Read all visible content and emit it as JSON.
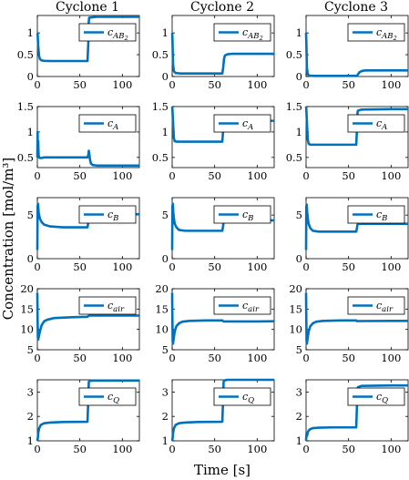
{
  "figure": {
    "xlabel": "Time [s]",
    "ylabel": "Concentration [mol/m³]",
    "columns": [
      "Cyclone 1",
      "Cyclone 2",
      "Cyclone 3"
    ]
  },
  "chart_data": [
    {
      "type": "line",
      "row": 0,
      "col": 0,
      "legend": "c_{AB_2}",
      "series_name": "c_AB2",
      "xlim": [
        0,
        120
      ],
      "ylim": [
        0,
        1.4
      ],
      "xticks": [
        0,
        50,
        100
      ],
      "yticks": [
        0,
        0.5,
        1
      ],
      "x": [
        0,
        0.3,
        1,
        2,
        3,
        5,
        8,
        15,
        30,
        59,
        60,
        60.3,
        61,
        70,
        100,
        120
      ],
      "y": [
        1.0,
        0.98,
        0.7,
        0.48,
        0.4,
        0.37,
        0.36,
        0.355,
        0.355,
        0.355,
        0.8,
        1.22,
        1.35,
        1.37,
        1.37,
        1.37
      ]
    },
    {
      "type": "line",
      "row": 0,
      "col": 1,
      "legend": "c_{AB_2}",
      "series_name": "c_AB2",
      "xlim": [
        0,
        120
      ],
      "ylim": [
        0,
        1.4
      ],
      "xticks": [
        0,
        50,
        100
      ],
      "yticks": [
        0,
        0.5,
        1
      ],
      "x": [
        0,
        0.3,
        1,
        2,
        4,
        10,
        30,
        59,
        60,
        61,
        62,
        65,
        70,
        100,
        120
      ],
      "y": [
        1.0,
        0.9,
        0.3,
        0.12,
        0.08,
        0.07,
        0.07,
        0.07,
        0.2,
        0.4,
        0.48,
        0.51,
        0.52,
        0.52,
        0.52
      ]
    },
    {
      "type": "line",
      "row": 0,
      "col": 2,
      "legend": "c_{AB_2}",
      "series_name": "c_AB2",
      "xlim": [
        0,
        120
      ],
      "ylim": [
        0,
        1.4
      ],
      "xticks": [
        0,
        50,
        100
      ],
      "yticks": [
        0,
        0.5,
        1
      ],
      "x": [
        0,
        0.3,
        1,
        2,
        4,
        10,
        30,
        60,
        61,
        63,
        66,
        70,
        100,
        120
      ],
      "y": [
        1.0,
        0.8,
        0.2,
        0.05,
        0.02,
        0.015,
        0.015,
        0.015,
        0.05,
        0.1,
        0.13,
        0.14,
        0.14,
        0.14
      ]
    },
    {
      "type": "line",
      "row": 1,
      "col": 0,
      "legend": "c_A",
      "series_name": "c_A",
      "xlim": [
        0,
        120
      ],
      "ylim": [
        0.3,
        1.5
      ],
      "xticks": [
        0,
        50,
        100
      ],
      "yticks": [
        0.5,
        1,
        1.5
      ],
      "x": [
        0,
        0.3,
        0.6,
        1,
        1.5,
        2,
        3,
        5,
        8,
        15,
        30,
        59,
        60,
        60.5,
        61,
        62,
        63,
        65,
        70,
        100,
        120
      ],
      "y": [
        0.5,
        1.0,
        0.6,
        0.82,
        0.55,
        0.5,
        0.49,
        0.49,
        0.5,
        0.5,
        0.5,
        0.5,
        0.55,
        0.63,
        0.58,
        0.45,
        0.38,
        0.35,
        0.34,
        0.34,
        0.34
      ]
    },
    {
      "type": "line",
      "row": 1,
      "col": 1,
      "legend": "c_A",
      "series_name": "c_A",
      "xlim": [
        0,
        120
      ],
      "ylim": [
        0.3,
        1.5
      ],
      "xticks": [
        0,
        50,
        100
      ],
      "yticks": [
        0.5,
        1,
        1.5
      ],
      "x": [
        0,
        0.3,
        1,
        2,
        3,
        5,
        10,
        30,
        59,
        60,
        60.5,
        61,
        65,
        100,
        120
      ],
      "y": [
        1.5,
        1.45,
        1.2,
        0.88,
        0.82,
        0.81,
        0.81,
        0.81,
        0.81,
        1.05,
        1.2,
        1.22,
        1.22,
        1.22,
        1.22
      ]
    },
    {
      "type": "line",
      "row": 1,
      "col": 2,
      "legend": "c_A",
      "series_name": "c_A",
      "xlim": [
        0,
        120
      ],
      "ylim": [
        0.3,
        1.5
      ],
      "xticks": [
        0,
        50,
        100
      ],
      "yticks": [
        0.5,
        1,
        1.5
      ],
      "x": [
        0,
        0.3,
        1,
        2,
        3,
        5,
        10,
        30,
        59,
        60,
        60.5,
        61,
        65,
        100,
        120
      ],
      "y": [
        1.5,
        1.45,
        1.2,
        0.85,
        0.77,
        0.75,
        0.75,
        0.75,
        0.75,
        1.1,
        1.38,
        1.42,
        1.44,
        1.45,
        1.45
      ]
    },
    {
      "type": "line",
      "row": 2,
      "col": 0,
      "legend": "c_B",
      "series_name": "c_B",
      "xlim": [
        0,
        120
      ],
      "ylim": [
        0,
        7
      ],
      "xticks": [
        0,
        50,
        100
      ],
      "yticks": [
        0,
        5
      ],
      "x": [
        0,
        0.3,
        0.8,
        1.5,
        3,
        5,
        8,
        15,
        30,
        59,
        60,
        60.5,
        61,
        65,
        100,
        120
      ],
      "y": [
        1.0,
        6.0,
        6.3,
        5.3,
        4.6,
        4.2,
        3.9,
        3.7,
        3.6,
        3.6,
        4.2,
        4.9,
        5.05,
        5.1,
        5.1,
        5.1
      ]
    },
    {
      "type": "line",
      "row": 2,
      "col": 1,
      "legend": "c_B",
      "series_name": "c_B",
      "xlim": [
        0,
        120
      ],
      "ylim": [
        0,
        7
      ],
      "xticks": [
        0,
        50,
        100
      ],
      "yticks": [
        0,
        5
      ],
      "x": [
        0,
        0.3,
        0.8,
        1.5,
        3,
        5,
        8,
        15,
        30,
        59,
        60,
        60.5,
        61,
        65,
        100,
        120
      ],
      "y": [
        1.0,
        6.0,
        6.3,
        5.0,
        4.0,
        3.6,
        3.3,
        3.2,
        3.2,
        3.2,
        3.8,
        4.3,
        4.4,
        4.4,
        4.4,
        4.4
      ]
    },
    {
      "type": "line",
      "row": 2,
      "col": 2,
      "legend": "c_B",
      "series_name": "c_B",
      "xlim": [
        0,
        120
      ],
      "ylim": [
        0,
        7
      ],
      "xticks": [
        0,
        50,
        100
      ],
      "yticks": [
        0,
        5
      ],
      "x": [
        0,
        0.3,
        0.8,
        1.5,
        3,
        5,
        8,
        15,
        30,
        59,
        60,
        60.5,
        61,
        65,
        100,
        120
      ],
      "y": [
        1.0,
        6.0,
        6.2,
        5.0,
        4.0,
        3.5,
        3.2,
        3.1,
        3.1,
        3.1,
        3.6,
        3.9,
        4.0,
        4.0,
        4.0,
        4.0
      ]
    },
    {
      "type": "line",
      "row": 3,
      "col": 0,
      "legend": "c_{air}",
      "series_name": "c_air",
      "xlim": [
        0,
        120
      ],
      "ylim": [
        5,
        20
      ],
      "xticks": [
        0,
        50,
        100
      ],
      "yticks": [
        5,
        10,
        15,
        20
      ],
      "x": [
        0,
        0.2,
        0.6,
        1,
        2,
        3,
        5,
        8,
        12,
        20,
        40,
        59,
        60,
        61,
        100,
        120
      ],
      "y": [
        19,
        14,
        8,
        7.5,
        8.5,
        9.5,
        11,
        12,
        12.4,
        12.8,
        13.0,
        13.1,
        13.3,
        13.4,
        13.4,
        13.4
      ]
    },
    {
      "type": "line",
      "row": 3,
      "col": 1,
      "legend": "c_{air}",
      "series_name": "c_air",
      "xlim": [
        0,
        120
      ],
      "ylim": [
        5,
        20
      ],
      "xticks": [
        0,
        50,
        100
      ],
      "yticks": [
        5,
        10,
        15,
        20
      ],
      "x": [
        0,
        0.2,
        0.6,
        1,
        2,
        3,
        5,
        8,
        12,
        20,
        40,
        59,
        60,
        61,
        100,
        120
      ],
      "y": [
        19,
        14,
        7,
        6.5,
        8,
        9.5,
        10.8,
        11.5,
        11.9,
        12.1,
        12.2,
        12.2,
        12.0,
        11.95,
        11.95,
        12.0
      ]
    },
    {
      "type": "line",
      "row": 3,
      "col": 2,
      "legend": "c_{air}",
      "series_name": "c_air",
      "xlim": [
        0,
        120
      ],
      "ylim": [
        5,
        20
      ],
      "xticks": [
        0,
        50,
        100
      ],
      "yticks": [
        5,
        10,
        15,
        20
      ],
      "x": [
        0,
        0.2,
        0.6,
        1,
        2,
        3,
        5,
        8,
        12,
        20,
        40,
        59,
        60,
        61,
        100,
        120
      ],
      "y": [
        19,
        14,
        7,
        6.5,
        8,
        9.5,
        10.8,
        11.5,
        11.9,
        12.1,
        12.2,
        12.2,
        12.0,
        12.05,
        12.1,
        12.1
      ]
    },
    {
      "type": "line",
      "row": 4,
      "col": 0,
      "legend": "c_Q",
      "series_name": "c_Q",
      "xlim": [
        0,
        120
      ],
      "ylim": [
        1,
        3.5
      ],
      "xticks": [
        0,
        50,
        100
      ],
      "yticks": [
        1,
        2,
        3
      ],
      "x": [
        0,
        0.5,
        1,
        2,
        4,
        8,
        15,
        30,
        59,
        60,
        60.5,
        61,
        65,
        100,
        120
      ],
      "y": [
        1.0,
        1.1,
        1.3,
        1.5,
        1.65,
        1.72,
        1.75,
        1.77,
        1.78,
        2.8,
        3.4,
        3.45,
        3.47,
        3.47,
        3.47
      ]
    },
    {
      "type": "line",
      "row": 4,
      "col": 1,
      "legend": "c_Q",
      "series_name": "c_Q",
      "xlim": [
        0,
        120
      ],
      "ylim": [
        1,
        3.5
      ],
      "xticks": [
        0,
        50,
        100
      ],
      "yticks": [
        1,
        2,
        3
      ],
      "x": [
        0,
        0.5,
        1,
        2,
        4,
        8,
        15,
        30,
        59,
        60,
        60.5,
        61,
        65,
        100,
        120
      ],
      "y": [
        1.0,
        1.1,
        1.3,
        1.5,
        1.65,
        1.72,
        1.75,
        1.77,
        1.78,
        2.8,
        3.4,
        3.47,
        3.5,
        3.5,
        3.5
      ]
    },
    {
      "type": "line",
      "row": 4,
      "col": 2,
      "legend": "c_Q",
      "series_name": "c_Q",
      "xlim": [
        0,
        120
      ],
      "ylim": [
        1,
        3.5
      ],
      "xticks": [
        0,
        50,
        100
      ],
      "yticks": [
        1,
        2,
        3
      ],
      "x": [
        0,
        0.5,
        1,
        1.5,
        2,
        3,
        5,
        8,
        15,
        30,
        59,
        60,
        60.5,
        61,
        65,
        100,
        120
      ],
      "y": [
        1.0,
        1.3,
        1.2,
        1.25,
        1.35,
        1.42,
        1.48,
        1.52,
        1.54,
        1.55,
        1.55,
        2.6,
        3.1,
        3.2,
        3.25,
        3.27,
        3.27
      ]
    }
  ]
}
